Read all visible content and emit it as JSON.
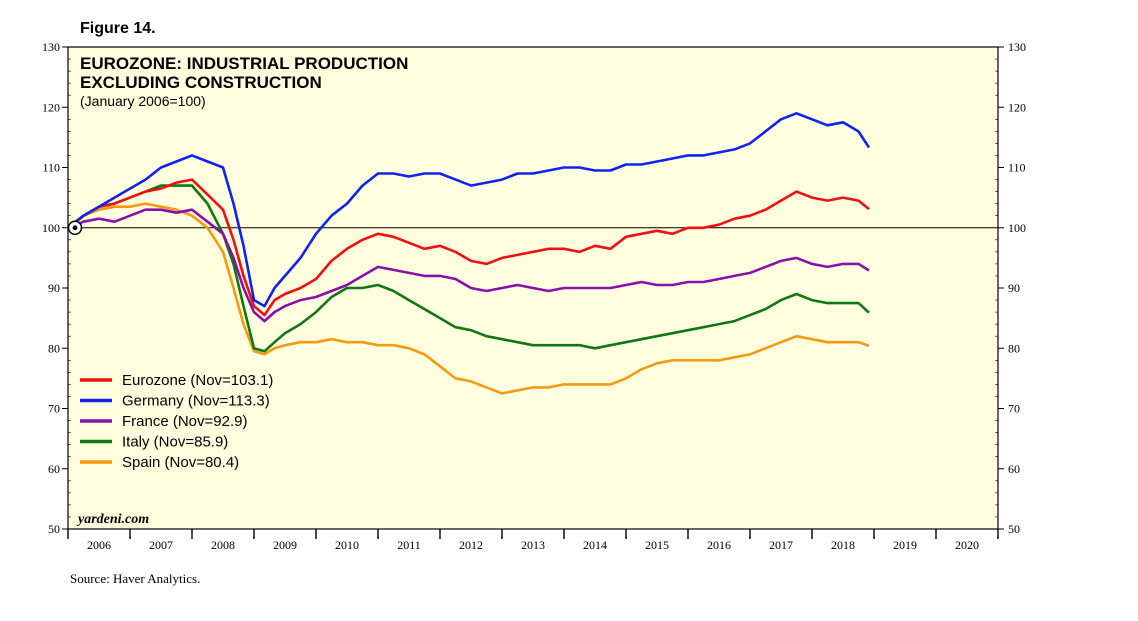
{
  "figure_label": "Figure 14.",
  "chart_data": {
    "type": "line",
    "title": "EUROZONE: INDUSTRIAL PRODUCTION",
    "title_line2": "EXCLUDING CONSTRUCTION",
    "subtitle": "(January 2006=100)",
    "xlabel": "",
    "ylabel": "",
    "ylim": [
      50,
      130
    ],
    "yticks": [
      50,
      60,
      70,
      80,
      90,
      100,
      110,
      120,
      130
    ],
    "xlim": [
      2006,
      2021
    ],
    "xtick_labels": [
      "2006",
      "2007",
      "2008",
      "2009",
      "2010",
      "2011",
      "2012",
      "2013",
      "2014",
      "2015",
      "2016",
      "2017",
      "2018",
      "2019",
      "2020"
    ],
    "reference_line": 100,
    "watermark": "yardeni.com",
    "source": "Source: Haver Analytics.",
    "legend_position": "lower-left",
    "series": [
      {
        "name": "Eurozone (Nov=103.1)",
        "color": "#ee1111",
        "x": [
          2006.0,
          2006.25,
          2006.5,
          2006.75,
          2007.0,
          2007.25,
          2007.5,
          2007.75,
          2008.0,
          2008.25,
          2008.5,
          2008.67,
          2008.83,
          2009.0,
          2009.17,
          2009.33,
          2009.5,
          2009.75,
          2010.0,
          2010.25,
          2010.5,
          2010.75,
          2011.0,
          2011.25,
          2011.5,
          2011.75,
          2012.0,
          2012.25,
          2012.5,
          2012.75,
          2013.0,
          2013.25,
          2013.5,
          2013.75,
          2014.0,
          2014.25,
          2014.5,
          2014.75,
          2015.0,
          2015.25,
          2015.5,
          2015.75,
          2016.0,
          2016.25,
          2016.5,
          2016.75,
          2017.0,
          2017.25,
          2017.5,
          2017.75,
          2018.0,
          2018.25,
          2018.5,
          2018.75,
          2018.92
        ],
        "values": [
          100,
          102,
          103.5,
          104,
          105,
          106,
          106.5,
          107.5,
          108,
          105.5,
          103,
          98,
          92,
          87,
          85.5,
          88,
          89,
          90,
          91.5,
          94.5,
          96.5,
          98,
          99,
          98.5,
          97.5,
          96.5,
          97,
          96,
          94.5,
          94,
          95,
          95.5,
          96,
          96.5,
          96.5,
          96,
          97,
          96.5,
          98.5,
          99,
          99.5,
          99,
          100,
          100,
          100.5,
          101.5,
          102,
          103,
          104.5,
          106,
          105,
          104.5,
          105,
          104.5,
          103.1
        ]
      },
      {
        "name": "Germany (Nov=113.3)",
        "color": "#1122ee",
        "x": [
          2006.0,
          2006.25,
          2006.5,
          2006.75,
          2007.0,
          2007.25,
          2007.5,
          2007.75,
          2008.0,
          2008.25,
          2008.5,
          2008.67,
          2008.83,
          2009.0,
          2009.17,
          2009.33,
          2009.5,
          2009.75,
          2010.0,
          2010.25,
          2010.5,
          2010.75,
          2011.0,
          2011.25,
          2011.5,
          2011.75,
          2012.0,
          2012.25,
          2012.5,
          2012.75,
          2013.0,
          2013.25,
          2013.5,
          2013.75,
          2014.0,
          2014.25,
          2014.5,
          2014.75,
          2015.0,
          2015.25,
          2015.5,
          2015.75,
          2016.0,
          2016.25,
          2016.5,
          2016.75,
          2017.0,
          2017.25,
          2017.5,
          2017.75,
          2018.0,
          2018.25,
          2018.5,
          2018.75,
          2018.92
        ],
        "values": [
          100,
          102,
          103.5,
          105,
          106.5,
          108,
          110,
          111,
          112,
          111,
          110,
          104,
          97,
          88,
          87,
          90,
          92,
          95,
          99,
          102,
          104,
          107,
          109,
          109,
          108.5,
          109,
          109,
          108,
          107,
          107.5,
          108,
          109,
          109,
          109.5,
          110,
          110,
          109.5,
          109.5,
          110.5,
          110.5,
          111,
          111.5,
          112,
          112,
          112.5,
          113,
          114,
          116,
          118,
          119,
          118,
          117,
          117.5,
          116,
          113.3
        ]
      },
      {
        "name": "France (Nov=92.9)",
        "color": "#8811aa",
        "x": [
          2006.0,
          2006.25,
          2006.5,
          2006.75,
          2007.0,
          2007.25,
          2007.5,
          2007.75,
          2008.0,
          2008.25,
          2008.5,
          2008.67,
          2008.83,
          2009.0,
          2009.17,
          2009.33,
          2009.5,
          2009.75,
          2010.0,
          2010.25,
          2010.5,
          2010.75,
          2011.0,
          2011.25,
          2011.5,
          2011.75,
          2012.0,
          2012.25,
          2012.5,
          2012.75,
          2013.0,
          2013.25,
          2013.5,
          2013.75,
          2014.0,
          2014.25,
          2014.5,
          2014.75,
          2015.0,
          2015.25,
          2015.5,
          2015.75,
          2016.0,
          2016.25,
          2016.5,
          2016.75,
          2017.0,
          2017.25,
          2017.5,
          2017.75,
          2018.0,
          2018.25,
          2018.5,
          2018.75,
          2018.92
        ],
        "values": [
          100,
          101,
          101.5,
          101,
          102,
          103,
          103,
          102.5,
          103,
          101,
          99,
          95,
          90,
          86,
          84.5,
          86,
          87,
          88,
          88.5,
          89.5,
          90.5,
          92,
          93.5,
          93,
          92.5,
          92,
          92,
          91.5,
          90,
          89.5,
          90,
          90.5,
          90,
          89.5,
          90,
          90,
          90,
          90,
          90.5,
          91,
          90.5,
          90.5,
          91,
          91,
          91.5,
          92,
          92.5,
          93.5,
          94.5,
          95,
          94,
          93.5,
          94,
          94,
          92.9
        ]
      },
      {
        "name": "Italy (Nov=85.9)",
        "color": "#117711",
        "x": [
          2006.0,
          2006.25,
          2006.5,
          2006.75,
          2007.0,
          2007.25,
          2007.5,
          2007.75,
          2008.0,
          2008.25,
          2008.5,
          2008.67,
          2008.83,
          2009.0,
          2009.17,
          2009.33,
          2009.5,
          2009.75,
          2010.0,
          2010.25,
          2010.5,
          2010.75,
          2011.0,
          2011.25,
          2011.5,
          2011.75,
          2012.0,
          2012.25,
          2012.5,
          2012.75,
          2013.0,
          2013.25,
          2013.5,
          2013.75,
          2014.0,
          2014.25,
          2014.5,
          2014.75,
          2015.0,
          2015.25,
          2015.5,
          2015.75,
          2016.0,
          2016.25,
          2016.5,
          2016.75,
          2017.0,
          2017.25,
          2017.5,
          2017.75,
          2018.0,
          2018.25,
          2018.5,
          2018.75,
          2018.92
        ],
        "values": [
          100,
          102,
          103.5,
          104,
          105,
          106,
          107,
          107,
          107,
          104,
          99,
          94,
          87,
          80,
          79.5,
          81,
          82.5,
          84,
          86,
          88.5,
          90,
          90,
          90.5,
          89.5,
          88,
          86.5,
          85,
          83.5,
          83,
          82,
          81.5,
          81,
          80.5,
          80.5,
          80.5,
          80.5,
          80,
          80.5,
          81,
          81.5,
          82,
          82.5,
          83,
          83.5,
          84,
          84.5,
          85.5,
          86.5,
          88,
          89,
          88,
          87.5,
          87.5,
          87.5,
          85.9
        ]
      },
      {
        "name": "Spain (Nov=80.4)",
        "color": "#f59a12",
        "x": [
          2006.0,
          2006.25,
          2006.5,
          2006.75,
          2007.0,
          2007.25,
          2007.5,
          2007.75,
          2008.0,
          2008.25,
          2008.5,
          2008.67,
          2008.83,
          2009.0,
          2009.17,
          2009.33,
          2009.5,
          2009.75,
          2010.0,
          2010.25,
          2010.5,
          2010.75,
          2011.0,
          2011.25,
          2011.5,
          2011.75,
          2012.0,
          2012.25,
          2012.5,
          2012.75,
          2013.0,
          2013.25,
          2013.5,
          2013.75,
          2014.0,
          2014.25,
          2014.5,
          2014.75,
          2015.0,
          2015.25,
          2015.5,
          2015.75,
          2016.0,
          2016.25,
          2016.5,
          2016.75,
          2017.0,
          2017.25,
          2017.5,
          2017.75,
          2018.0,
          2018.25,
          2018.5,
          2018.75,
          2018.92
        ],
        "values": [
          100,
          102,
          103,
          103.5,
          103.5,
          104,
          103.5,
          103,
          102,
          100,
          96,
          90,
          84,
          79.5,
          79,
          80,
          80.5,
          81,
          81,
          81.5,
          81,
          81,
          80.5,
          80.5,
          80,
          79,
          77,
          75,
          74.5,
          73.5,
          72.5,
          73,
          73.5,
          73.5,
          74,
          74,
          74,
          74,
          75,
          76.5,
          77.5,
          78,
          78,
          78,
          78,
          78.5,
          79,
          80,
          81,
          82,
          81.5,
          81,
          81,
          81,
          80.4
        ]
      }
    ]
  }
}
